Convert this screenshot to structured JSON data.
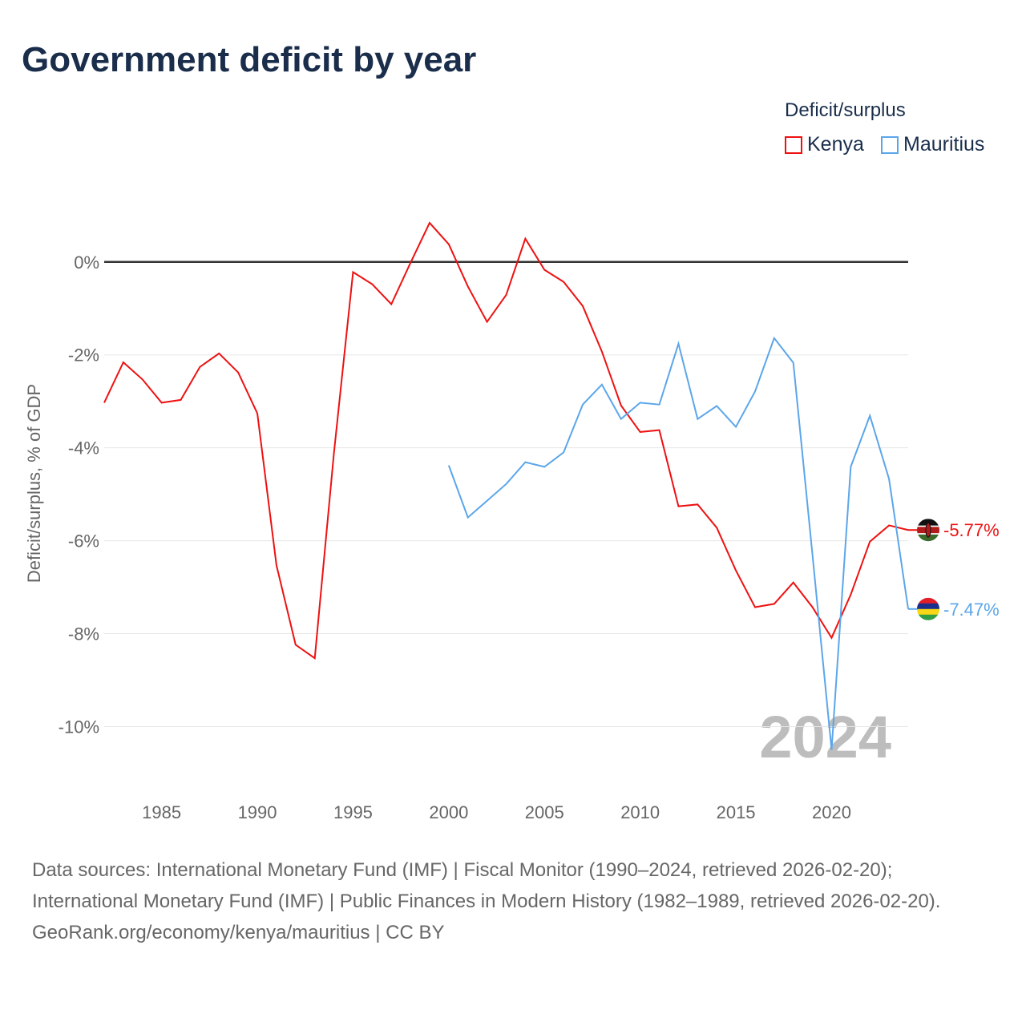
{
  "title": "Government deficit by year",
  "legend": {
    "title": "Deficit/surplus",
    "items": [
      {
        "label": "Kenya",
        "color": "#ee1111"
      },
      {
        "label": "Mauritius",
        "color": "#5ba6ea"
      }
    ]
  },
  "watermark_year": "2024",
  "sources": {
    "line1": "Data sources: International Monetary Fund (IMF) | Fiscal Monitor (1990–2024, retrieved 2026-02-20); International Monetary Fund (IMF) | Public Finances in Modern History (1982–1989, retrieved 2026-02-20).",
    "line2": "GeoRank.org/economy/kenya/mauritius | CC BY"
  },
  "chart_data": {
    "type": "line",
    "title": "Government deficit by year",
    "xlabel": "",
    "ylabel": "Deficit/surplus, % of GDP",
    "xlim": [
      1982,
      2024
    ],
    "ylim": [
      -11.2,
      1.6
    ],
    "xticks": [
      1985,
      1990,
      1995,
      2000,
      2005,
      2010,
      2015,
      2020
    ],
    "yticks": [
      0,
      -2,
      -4,
      -6,
      -8,
      -10
    ],
    "ytick_labels": [
      "0%",
      "-2%",
      "-4%",
      "-6%",
      "-8%",
      "-10%"
    ],
    "grid": true,
    "legend_position": "top-right",
    "series": [
      {
        "name": "Kenya",
        "color": "#ee1111",
        "end_label": "-5.77%",
        "flag": "kenya-flag-icon",
        "x": [
          1982,
          1983,
          1984,
          1985,
          1986,
          1987,
          1988,
          1989,
          1990,
          1991,
          1992,
          1993,
          1994,
          1995,
          1996,
          1997,
          1998,
          1999,
          2000,
          2001,
          2002,
          2003,
          2004,
          2005,
          2006,
          2007,
          2008,
          2009,
          2010,
          2011,
          2012,
          2013,
          2014,
          2015,
          2016,
          2017,
          2018,
          2019,
          2020,
          2021,
          2022,
          2023,
          2024
        ],
        "y": [
          -3.03,
          -2.16,
          -2.53,
          -3.03,
          -2.97,
          -2.26,
          -1.97,
          -2.38,
          -3.26,
          -6.53,
          -8.24,
          -8.53,
          -4.12,
          -0.22,
          -0.48,
          -0.91,
          -0.02,
          0.84,
          0.38,
          -0.53,
          -1.29,
          -0.71,
          0.5,
          -0.17,
          -0.43,
          -0.95,
          -1.93,
          -3.09,
          -3.66,
          -3.62,
          -5.26,
          -5.22,
          -5.72,
          -6.64,
          -7.43,
          -7.36,
          -6.9,
          -7.43,
          -8.09,
          -7.16,
          -6.02,
          -5.67,
          -5.77
        ]
      },
      {
        "name": "Mauritius",
        "color": "#5ba6ea",
        "end_label": "-7.47%",
        "flag": "mauritius-flag-icon",
        "x": [
          2000,
          2001,
          2002,
          2003,
          2004,
          2005,
          2006,
          2007,
          2008,
          2009,
          2010,
          2011,
          2012,
          2013,
          2014,
          2015,
          2016,
          2017,
          2018,
          2019,
          2020,
          2021,
          2022,
          2023,
          2024
        ],
        "y": [
          -4.38,
          -5.5,
          -5.14,
          -4.78,
          -4.31,
          -4.41,
          -4.1,
          -3.07,
          -2.64,
          -3.38,
          -3.03,
          -3.07,
          -1.76,
          -3.38,
          -3.1,
          -3.55,
          -2.79,
          -1.64,
          -2.17,
          -6.3,
          -10.5,
          -4.41,
          -3.31,
          -4.67,
          -7.47
        ]
      }
    ]
  }
}
